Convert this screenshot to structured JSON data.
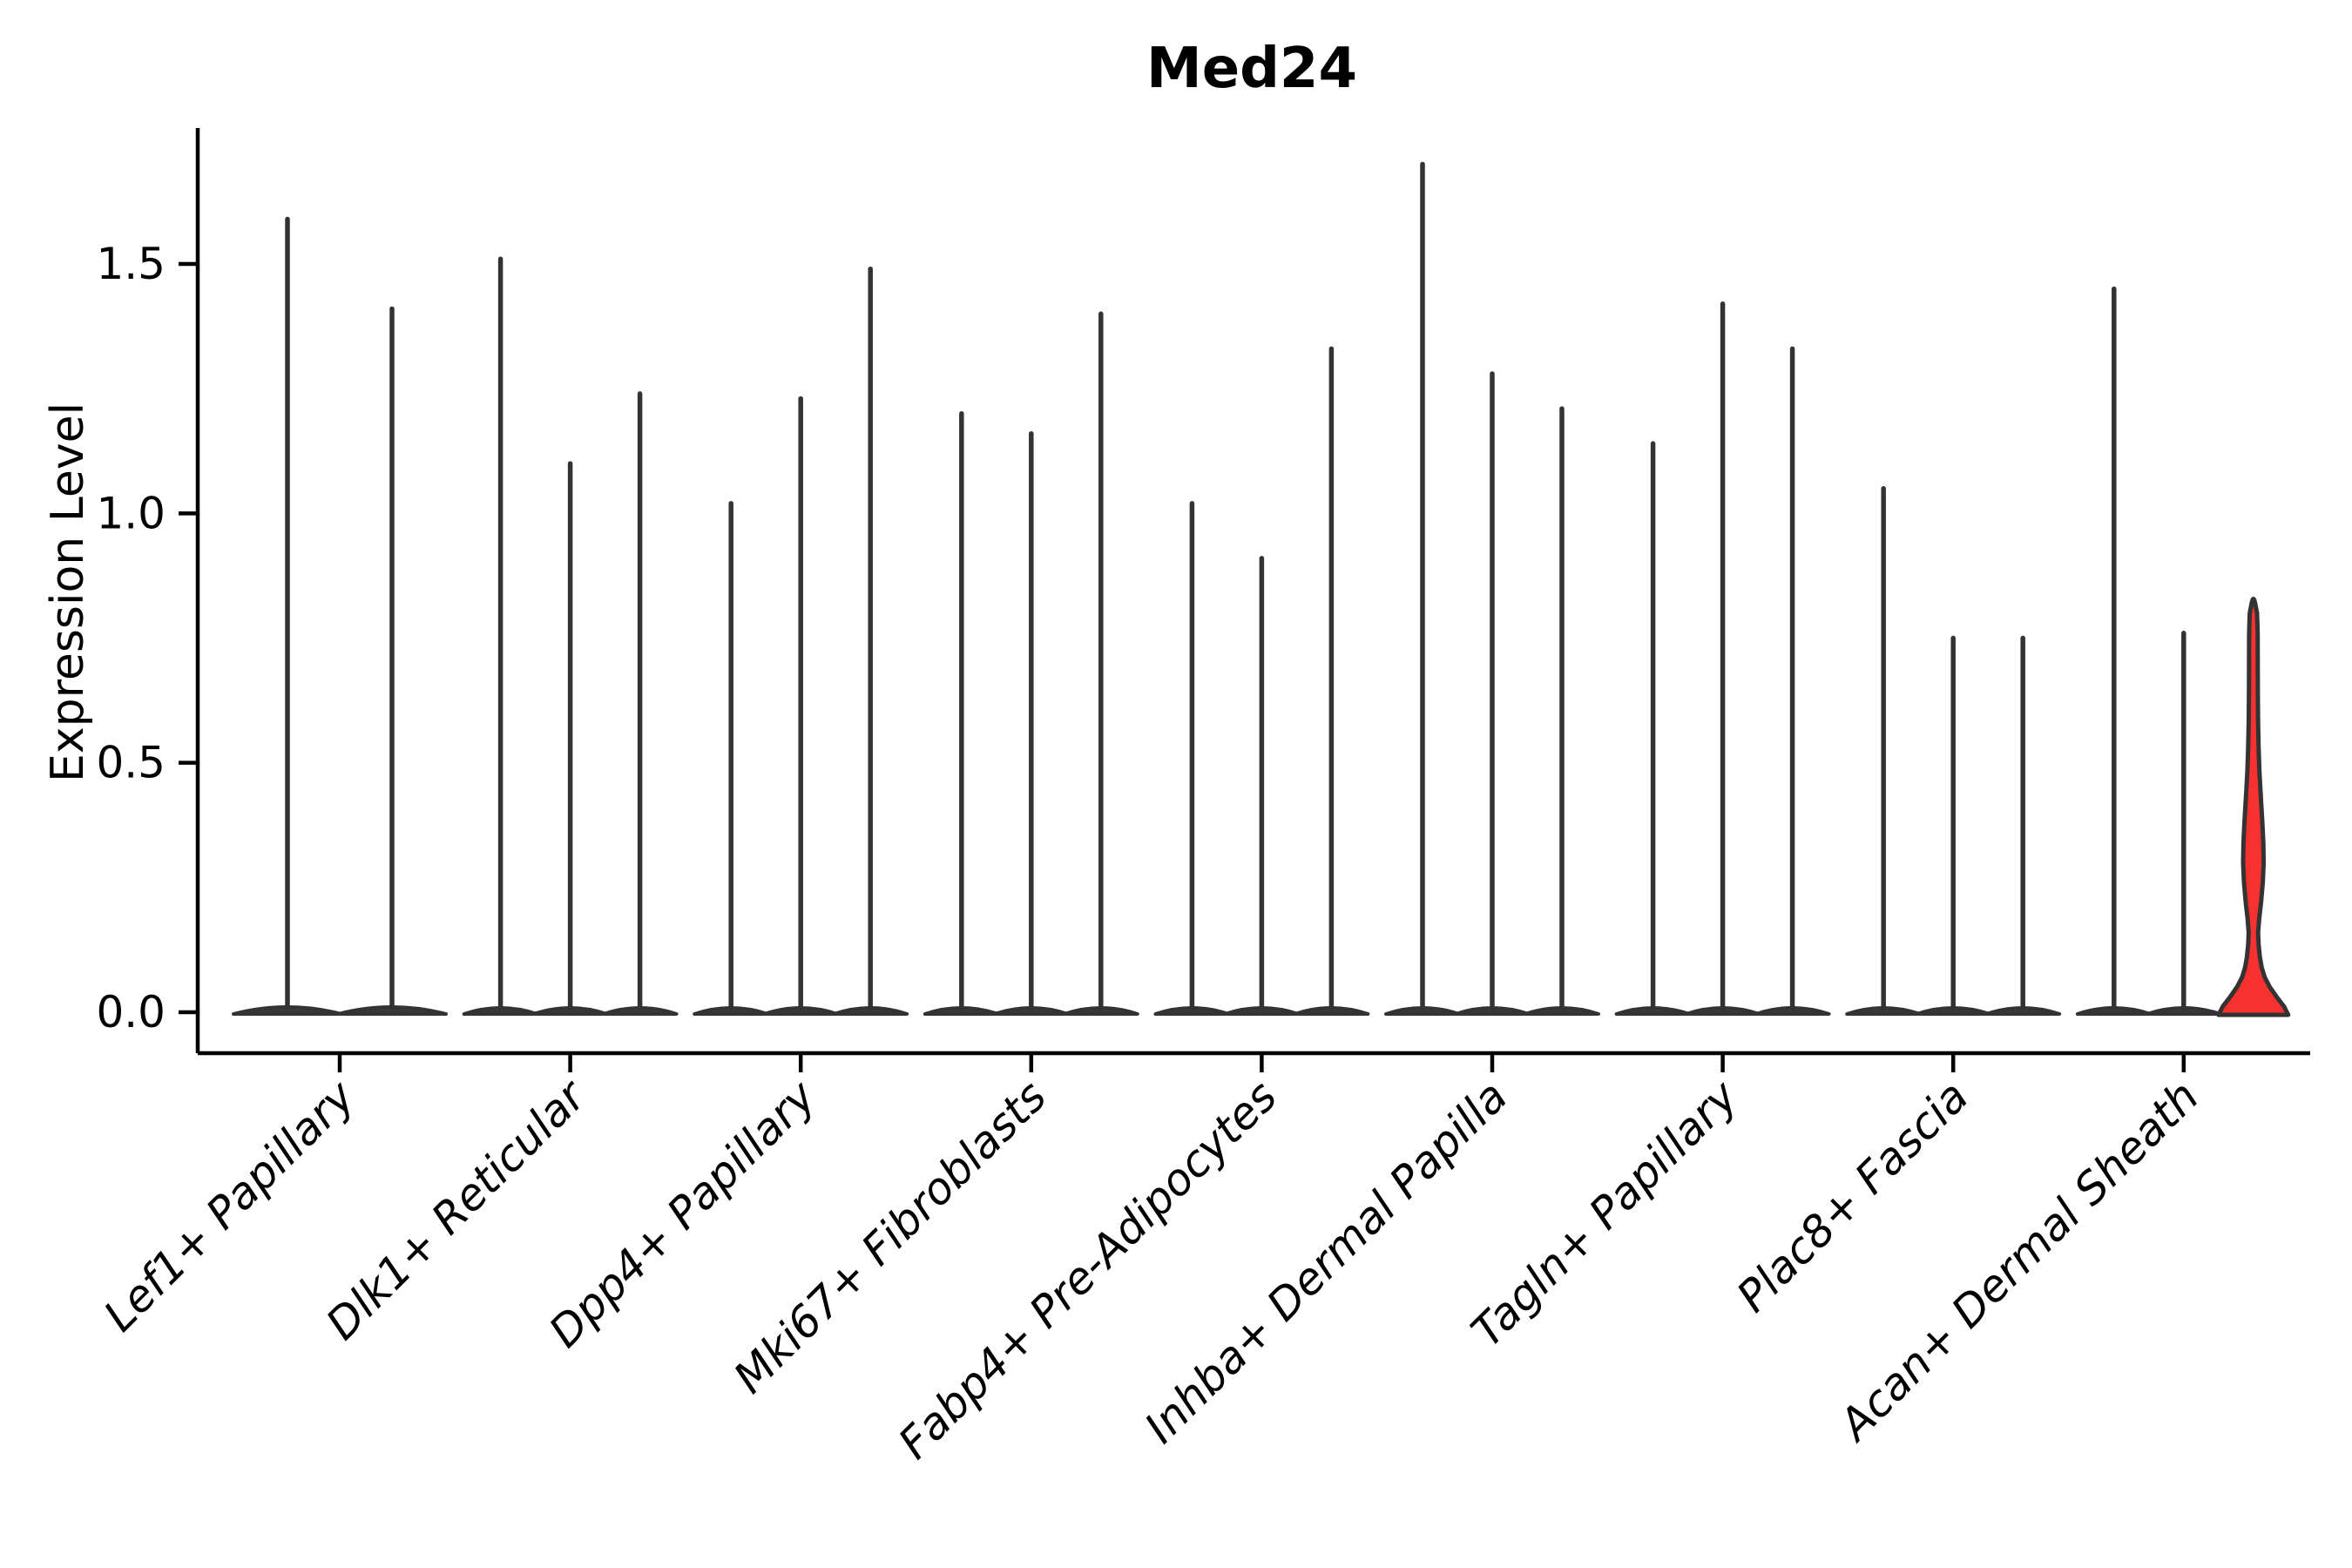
{
  "chart_data": {
    "type": "violin",
    "title": "Med24",
    "ylabel": "Expression Level",
    "xlabel": "",
    "ylim": [
      -0.08,
      1.77
    ],
    "yticks": [
      0.0,
      0.5,
      1.0,
      1.5
    ],
    "ytick_labels": [
      "0.0",
      "0.5",
      "1.0",
      "1.5"
    ],
    "grid": false,
    "legend": "none",
    "categories": [
      "Lef1+ Papillary",
      "Dlk1+ Reticular",
      "Dpp4+ Papillary",
      "Mki67+ Fibroblasts",
      "Fabp4+ Pre-Adipocytes",
      "Inhba+ Dermal Papilla",
      "Tagln+ Papillary",
      "Plac8+ Fascia",
      "Acan+ Dermal Sheath"
    ],
    "series": [
      {
        "category": "Lef1+ Papillary",
        "violins": [
          {
            "max": 1.59
          },
          {
            "max": 1.41
          }
        ]
      },
      {
        "category": "Dlk1+ Reticular",
        "violins": [
          {
            "max": 1.51
          },
          {
            "max": 1.1
          },
          {
            "max": 1.24
          }
        ]
      },
      {
        "category": "Dpp4+ Papillary",
        "violins": [
          {
            "max": 1.02
          },
          {
            "max": 1.23
          },
          {
            "max": 1.49
          }
        ]
      },
      {
        "category": "Mki67+ Fibroblasts",
        "violins": [
          {
            "max": 1.2
          },
          {
            "max": 1.16
          },
          {
            "max": 1.4
          }
        ]
      },
      {
        "category": "Fabp4+ Pre-Adipocytes",
        "violins": [
          {
            "max": 1.02
          },
          {
            "max": 0.91
          },
          {
            "max": 1.33
          }
        ]
      },
      {
        "category": "Inhba+ Dermal Papilla",
        "violins": [
          {
            "max": 1.7
          },
          {
            "max": 1.28
          },
          {
            "max": 1.21
          }
        ]
      },
      {
        "category": "Tagln+ Papillary",
        "violins": [
          {
            "max": 1.14
          },
          {
            "max": 1.42
          },
          {
            "max": 1.33
          }
        ]
      },
      {
        "category": "Plac8+ Fascia",
        "violins": [
          {
            "max": 1.05
          },
          {
            "max": 0.75
          },
          {
            "max": 0.75
          }
        ]
      },
      {
        "category": "Acan+ Dermal Sheath",
        "violins": [
          {
            "max": 1.45
          },
          {
            "max": 0.76
          },
          {
            "max": 0.82,
            "highlighted": true,
            "profile": [
              [
                0.0,
                40.0
              ],
              [
                0.012,
                35.0
              ],
              [
                0.03,
                27.0
              ],
              [
                0.05,
                19.0
              ],
              [
                0.07,
                13.0
              ],
              [
                0.09,
                9.5
              ],
              [
                0.11,
                7.5
              ],
              [
                0.135,
                6.0
              ],
              [
                0.16,
                5.4
              ],
              [
                0.19,
                6.8
              ],
              [
                0.22,
                8.8
              ],
              [
                0.26,
                10.8
              ],
              [
                0.3,
                11.8
              ],
              [
                0.34,
                11.4
              ],
              [
                0.38,
                10.3
              ],
              [
                0.43,
                8.6
              ],
              [
                0.48,
                7.0
              ],
              [
                0.53,
                6.0
              ],
              [
                0.58,
                5.4
              ],
              [
                0.64,
                5.1
              ],
              [
                0.7,
                5.0
              ],
              [
                0.76,
                4.9
              ],
              [
                0.8,
                4.2
              ],
              [
                0.818,
                2.2
              ]
            ]
          }
        ]
      }
    ],
    "colors": {
      "violin_line": "#333333",
      "violin_fill": "#3a3a3a",
      "highlight_fill": "#f73030",
      "axis": "#000000",
      "background": "#ffffff"
    }
  }
}
